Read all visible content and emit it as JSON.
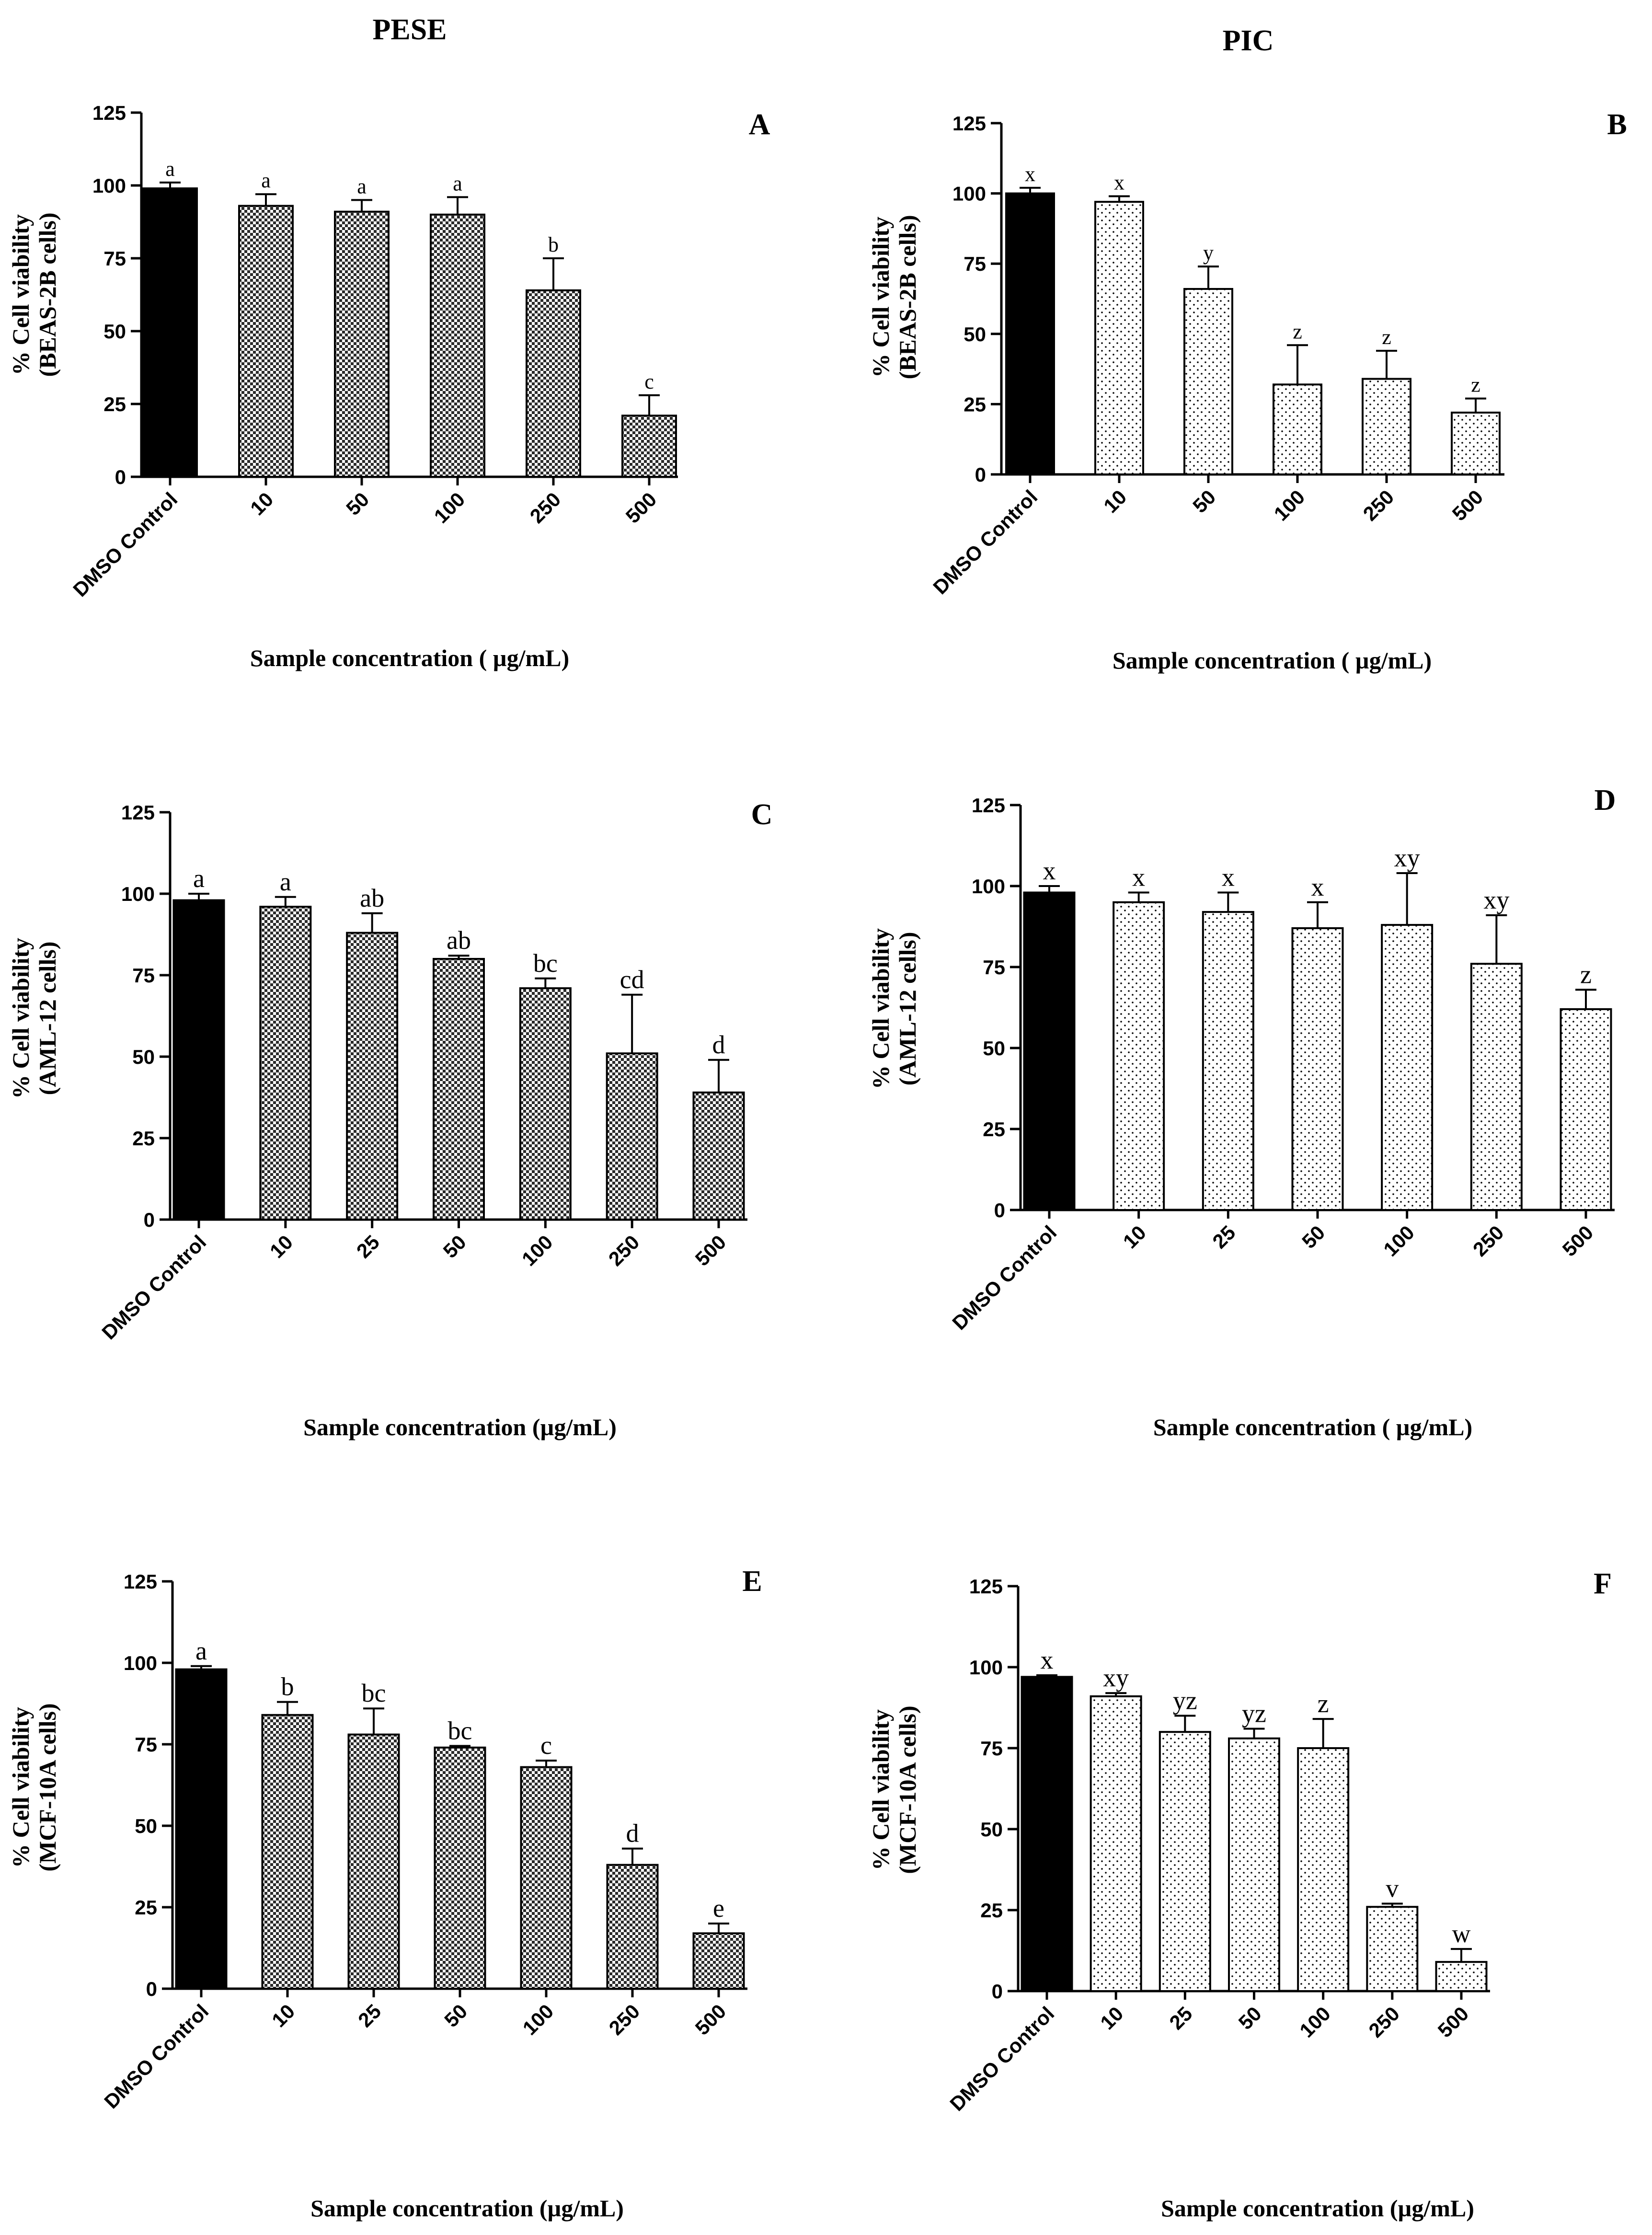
{
  "figure": {
    "columns": [
      "PESE",
      "PIC"
    ],
    "colors": {
      "control": "#000000",
      "stroke": "#000000",
      "pese_fill": "#3a3a3a",
      "pic_fill": "#ffffff",
      "pic_dot": "#000000"
    }
  },
  "chart_data": [
    {
      "panel": "A",
      "type": "bar",
      "group": "PESE",
      "ylabel": [
        "% Cell viability",
        "(BEAS-2B cells)"
      ],
      "xlabel": "Sample concentration ( µg/mL)",
      "yticks": [
        "0",
        "25",
        "50",
        "75",
        "100",
        "125"
      ],
      "ylim": [
        0,
        125
      ],
      "categories": [
        "DMSO Control",
        "10",
        "50",
        "100",
        "250",
        "500"
      ],
      "values": [
        99,
        93,
        91,
        90,
        64,
        21
      ],
      "errors": [
        2,
        4,
        4,
        6,
        11,
        7
      ],
      "letters": [
        "a",
        "a",
        "a",
        "a",
        "b",
        "c"
      ]
    },
    {
      "panel": "B",
      "type": "bar",
      "group": "PIC",
      "ylabel": [
        "% Cell viability",
        "(BEAS-2B cells)"
      ],
      "xlabel": "Sample concentration ( µg/mL)",
      "yticks": [
        "0",
        "25",
        "50",
        "75",
        "100",
        "125"
      ],
      "ylim": [
        0,
        125
      ],
      "categories": [
        "DMSO Control",
        "10",
        "50",
        "100",
        "250",
        "500"
      ],
      "values": [
        100,
        97,
        66,
        32,
        34,
        22
      ],
      "errors": [
        2,
        2,
        8,
        14,
        10,
        5
      ],
      "letters": [
        "x",
        "x",
        "y",
        "z",
        "z",
        "z"
      ]
    },
    {
      "panel": "C",
      "type": "bar",
      "group": "PESE",
      "ylabel": [
        "% Cell viability",
        "(AML-12 cells)"
      ],
      "xlabel": "Sample concentration (µg/mL)",
      "yticks": [
        "0",
        "25",
        "50",
        "75",
        "100",
        "125"
      ],
      "ylim": [
        0,
        125
      ],
      "categories": [
        "DMSO Control",
        "10",
        "25",
        "50",
        "100",
        "250",
        "500"
      ],
      "values": [
        98,
        96,
        88,
        80,
        71,
        51,
        39
      ],
      "errors": [
        2,
        3,
        6,
        1,
        3,
        18,
        10
      ],
      "letters": [
        "a",
        "a",
        "ab",
        "ab",
        "bc",
        "cd",
        "d"
      ]
    },
    {
      "panel": "D",
      "type": "bar",
      "group": "PIC",
      "ylabel": [
        "% Cell viability",
        "(AML-12 cells)"
      ],
      "xlabel": "Sample concentration ( µg/mL)",
      "yticks": [
        "0",
        "25",
        "50",
        "75",
        "100",
        "125"
      ],
      "ylim": [
        0,
        125
      ],
      "categories": [
        "DMSO Control",
        "10",
        "25",
        "50",
        "100",
        "250",
        "500"
      ],
      "values": [
        98,
        95,
        92,
        87,
        88,
        76,
        62
      ],
      "errors": [
        2,
        3,
        6,
        8,
        16,
        15,
        6
      ],
      "letters": [
        "x",
        "x",
        "x",
        "x",
        "xy",
        "xy",
        "z"
      ]
    },
    {
      "panel": "E",
      "type": "bar",
      "group": "PESE",
      "ylabel": [
        "% Cell viability",
        "(MCF-10A cells)"
      ],
      "xlabel": "Sample concentration (µg/mL)",
      "yticks": [
        "0",
        "25",
        "50",
        "75",
        "100",
        "125"
      ],
      "ylim": [
        0,
        125
      ],
      "categories": [
        "DMSO Control",
        "10",
        "25",
        "50",
        "100",
        "250",
        "500"
      ],
      "values": [
        98,
        84,
        78,
        74,
        68,
        38,
        17
      ],
      "errors": [
        1,
        4,
        8,
        0.5,
        2,
        5,
        3
      ],
      "letters": [
        "a",
        "b",
        "bc",
        "bc",
        "c",
        "d",
        "e"
      ]
    },
    {
      "panel": "F",
      "type": "bar",
      "group": "PIC",
      "ylabel": [
        "% Cell viability",
        "(MCF-10A cells)"
      ],
      "xlabel": "Sample concentration (µg/mL)",
      "yticks": [
        "0",
        "25",
        "50",
        "75",
        "100",
        "125"
      ],
      "ylim": [
        0,
        125
      ],
      "categories": [
        "DMSO Control",
        "10",
        "25",
        "50",
        "100",
        "250",
        "500"
      ],
      "values": [
        97,
        91,
        80,
        78,
        75,
        26,
        9
      ],
      "errors": [
        0.5,
        1,
        5,
        3,
        9,
        1,
        4
      ],
      "letters": [
        "x",
        "xy",
        "yz",
        "yz",
        "z",
        "v",
        "w"
      ]
    }
  ]
}
